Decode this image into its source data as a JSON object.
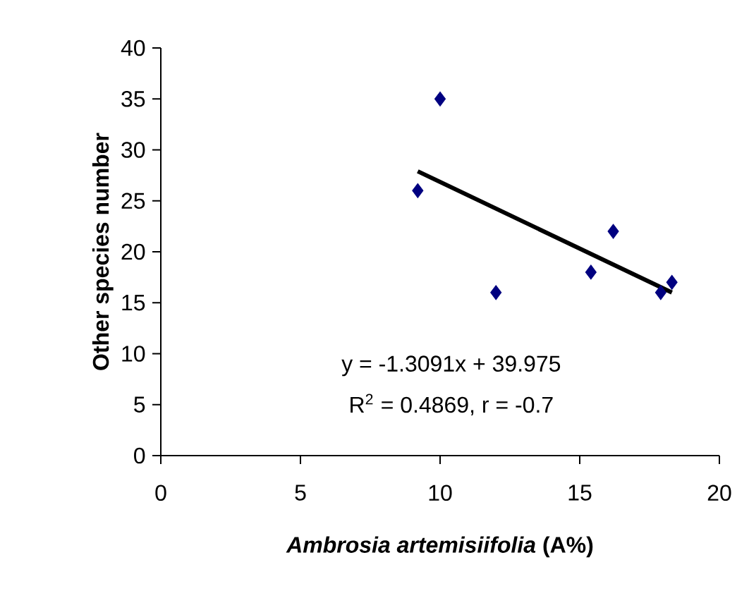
{
  "chart_data": {
    "type": "scatter",
    "xlabel": "*Ambrosia artemisiifolia* (A%)",
    "ylabel": "Other species number",
    "xlim": [
      0,
      20
    ],
    "ylim": [
      0,
      40
    ],
    "xticks": [
      0,
      5,
      10,
      15,
      20
    ],
    "yticks": [
      0,
      5,
      10,
      15,
      20,
      25,
      30,
      35,
      40
    ],
    "grid": false,
    "marker": "diamond",
    "series": [
      {
        "color": "#000080",
        "x": [
          9.2,
          10,
          12,
          15.4,
          16.2,
          17.9,
          18.3
        ],
        "values": [
          26,
          35,
          16,
          18,
          22,
          16,
          17
        ]
      },
      {
        "type": "line",
        "color": "#000000",
        "marker": "none",
        "x": [
          9.2,
          18.3
        ],
        "values": [
          27.9,
          16.0
        ]
      }
    ],
    "annotations": [
      "y = -1.3091x + 39.975",
      "R$^{2}$ = 0.4869, r = -0.7"
    ]
  }
}
